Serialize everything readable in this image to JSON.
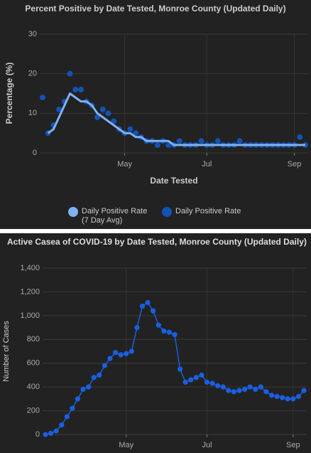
{
  "chart_data": [
    {
      "type": "line",
      "title": "Percent Positive by Date Tested, Monroe County (Updated Daily)",
      "y_label": "Percentage (%)",
      "x_label": "Date Tested",
      "categories": [
        null,
        null,
        null,
        null,
        null,
        null,
        null,
        null,
        null,
        null,
        null,
        null,
        null,
        null,
        null,
        "May",
        null,
        null,
        null,
        null,
        null,
        null,
        null,
        null,
        null,
        null,
        null,
        null,
        null,
        null,
        "Jul",
        null,
        null,
        null,
        null,
        null,
        null,
        null,
        null,
        null,
        null,
        null,
        null,
        null,
        null,
        null,
        "Sep",
        null,
        null
      ],
      "series": [
        {
          "name": "Daily Positive Rate (7 Day Avg)",
          "color": "#7fb2f0",
          "mark": "line",
          "values": [
            null,
            5,
            6,
            9,
            12,
            15,
            14,
            13,
            13,
            12,
            10,
            9,
            8,
            7,
            6,
            5,
            5,
            4,
            4,
            3,
            3,
            3,
            3,
            3,
            2,
            2,
            2,
            2,
            2,
            2,
            2,
            2,
            2,
            2,
            2,
            2,
            2,
            2,
            2,
            2,
            2,
            2,
            2,
            2,
            2,
            2,
            2,
            2,
            2
          ]
        },
        {
          "name": "Daily Positive Rate",
          "color": "#1452b5",
          "mark": "dots",
          "values": [
            14,
            5,
            7,
            11,
            13,
            20,
            16,
            16,
            13,
            12,
            9,
            11,
            10,
            8,
            6,
            5,
            6,
            5,
            4,
            3,
            3,
            2,
            3,
            2,
            2,
            3,
            2,
            2,
            2,
            3,
            2,
            2,
            3,
            2,
            2,
            2,
            3,
            2,
            2,
            2,
            2,
            2,
            2,
            2,
            2,
            2,
            2,
            4,
            2
          ]
        }
      ],
      "ylim": [
        0,
        30
      ],
      "yticks": [
        0,
        10,
        20,
        30
      ],
      "grid": true,
      "legend": "bottom"
    },
    {
      "type": "line",
      "title": "Active Casea of COVID-19 by Date Tested, Monroe County (Updated Daily)",
      "y_label": "Number of Cases",
      "categories": [
        null,
        null,
        null,
        null,
        null,
        null,
        null,
        null,
        null,
        null,
        null,
        null,
        null,
        null,
        null,
        "May",
        null,
        null,
        null,
        null,
        null,
        null,
        null,
        null,
        null,
        null,
        null,
        null,
        null,
        null,
        "Jul",
        null,
        null,
        null,
        null,
        null,
        null,
        null,
        null,
        null,
        null,
        null,
        null,
        null,
        null,
        null,
        "Sep",
        null,
        null
      ],
      "color": "#1a5fe0",
      "markers": true,
      "values": [
        0,
        10,
        30,
        80,
        150,
        220,
        300,
        380,
        400,
        480,
        500,
        580,
        640,
        690,
        670,
        680,
        700,
        900,
        1080,
        1110,
        1040,
        920,
        870,
        860,
        840,
        550,
        440,
        460,
        480,
        500,
        440,
        430,
        410,
        400,
        370,
        360,
        370,
        380,
        400,
        380,
        400,
        360,
        330,
        320,
        310,
        300,
        300,
        320,
        370
      ],
      "ylim": [
        0,
        1400
      ],
      "yticks": [
        0,
        200,
        400,
        600,
        800,
        {
          "value": 1000,
          "label": "1,000"
        },
        {
          "value": 1200,
          "label": "1,200"
        },
        {
          "value": 1400,
          "label": "1,400"
        }
      ],
      "grid": true
    }
  ]
}
